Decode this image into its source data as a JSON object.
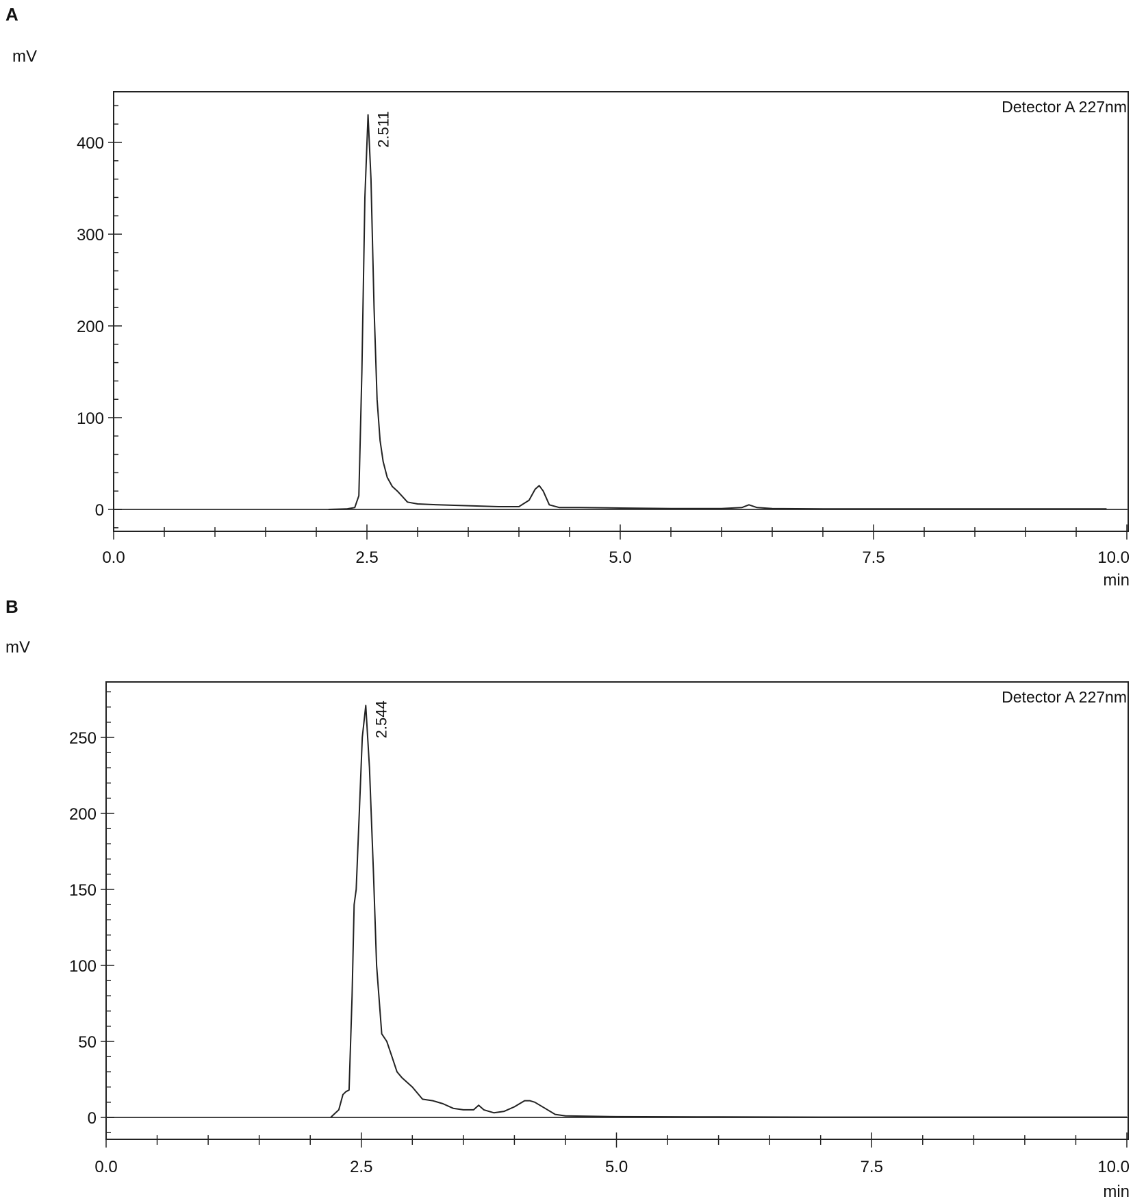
{
  "chart_data": [
    {
      "type": "line",
      "panel": "A",
      "ylabel": "mV",
      "xlabel": "min",
      "legend": "Detector A 227nm",
      "legend_position": "top-right",
      "xlim": [
        0,
        10
      ],
      "ylim": [
        -22,
        453
      ],
      "x_ticks": [
        "0.0",
        "2.5",
        "5.0",
        "7.5",
        "10.0"
      ],
      "y_ticks": [
        "0",
        "100",
        "200",
        "300",
        "400"
      ],
      "peak_label": {
        "text": "2.511",
        "x": 2.511,
        "y": 430
      },
      "series": [
        {
          "x": [
            2.12,
            2.3,
            2.38,
            2.42,
            2.45,
            2.48,
            2.511,
            2.54,
            2.57,
            2.6,
            2.63,
            2.66,
            2.7,
            2.75,
            2.8,
            2.85,
            2.9,
            3.0,
            3.2,
            3.5,
            3.8,
            4.0,
            4.1,
            4.16,
            4.2,
            4.24,
            4.3,
            4.4,
            4.6,
            5.0,
            5.5,
            6.0,
            6.2,
            6.27,
            6.35,
            6.5,
            7.0,
            8.0,
            8.5,
            9.0,
            9.5,
            9.8
          ],
          "values": [
            0,
            0.5,
            2,
            15,
            150,
            340,
            430,
            360,
            220,
            120,
            75,
            52,
            35,
            25,
            20,
            14,
            8,
            6,
            5,
            4,
            3,
            3,
            10,
            22,
            26,
            20,
            5,
            2,
            2,
            1.5,
            1,
            1,
            2,
            5,
            2,
            1,
            0.5,
            0.5,
            0.5,
            0.5,
            0.5,
            0.5
          ]
        }
      ]
    },
    {
      "type": "line",
      "panel": "B",
      "ylabel": "mV",
      "xlabel": "min",
      "legend": "Detector A 227nm",
      "legend_position": "top-right",
      "xlim": [
        0,
        10
      ],
      "ylim": [
        -14,
        285
      ],
      "x_ticks": [
        "0.0",
        "2.5",
        "5.0",
        "7.5",
        "10.0"
      ],
      "y_ticks": [
        "0",
        "50",
        "100",
        "150",
        "200",
        "250"
      ],
      "peak_label": {
        "text": "2.544",
        "x": 2.544,
        "y": 271
      },
      "series": [
        {
          "x": [
            2.2,
            2.28,
            2.32,
            2.35,
            2.38,
            2.41,
            2.43,
            2.45,
            2.48,
            2.51,
            2.544,
            2.58,
            2.62,
            2.65,
            2.7,
            2.75,
            2.8,
            2.85,
            2.9,
            3.0,
            3.1,
            3.2,
            3.3,
            3.4,
            3.5,
            3.6,
            3.65,
            3.7,
            3.8,
            3.9,
            4.0,
            4.1,
            4.15,
            4.2,
            4.3,
            4.4,
            4.5,
            5.0,
            6.0,
            7.0,
            8.0,
            9.0,
            10.0
          ],
          "values": [
            0,
            5,
            15,
            17,
            18,
            80,
            140,
            150,
            200,
            250,
            271,
            230,
            160,
            100,
            55,
            50,
            40,
            30,
            26,
            20,
            12,
            11,
            9,
            6,
            5,
            5,
            8,
            5,
            3,
            4,
            7,
            11,
            11,
            10,
            6,
            2,
            1,
            0.5,
            0.3,
            0.2,
            0.2,
            0.2,
            0.2
          ]
        }
      ]
    }
  ]
}
